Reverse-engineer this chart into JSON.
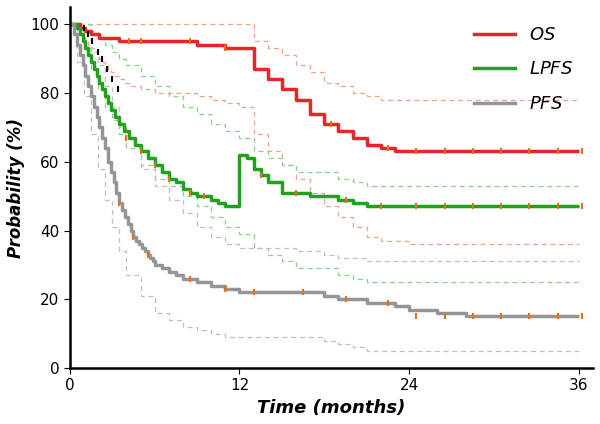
{
  "xlabel": "Time (months)",
  "ylabel": "Probability (%)",
  "xlim": [
    0,
    37
  ],
  "ylim": [
    0,
    105
  ],
  "xticks": [
    0,
    12,
    24,
    36
  ],
  "yticks": [
    0,
    20,
    40,
    60,
    80,
    100
  ],
  "OS_color": "#e8262a",
  "LPFS_color": "#22a11e",
  "PFS_color": "#959595",
  "CI_OS_color": "#f4a08a",
  "CI_LPFS_color": "#88d488",
  "CI_PFS_color": "#c0c0c0",
  "OS_x": [
    0,
    0.3,
    0.5,
    0.7,
    0.9,
    1.1,
    1.3,
    1.5,
    1.7,
    1.9,
    2.1,
    2.3,
    2.5,
    2.7,
    2.9,
    3.2,
    3.5,
    3.8,
    4.2,
    4.6,
    5.0,
    5.5,
    6.0,
    6.5,
    7.0,
    7.5,
    8.0,
    9.0,
    10.0,
    11.0,
    12.0,
    13.0,
    14.0,
    15.0,
    16.0,
    17.0,
    18.0,
    19.0,
    20.0,
    21.0,
    22.0,
    23.0,
    24.0,
    26.0,
    28.0,
    30.0,
    32.0,
    34.0,
    36.0
  ],
  "OS_y": [
    100,
    100,
    100,
    99,
    99,
    98,
    98,
    97,
    97,
    97,
    96,
    96,
    96,
    96,
    96,
    96,
    95,
    95,
    95,
    95,
    95,
    95,
    95,
    95,
    95,
    95,
    95,
    94,
    94,
    93,
    93,
    87,
    84,
    81,
    78,
    74,
    71,
    69,
    67,
    65,
    64,
    63,
    63,
    63,
    63,
    63,
    63,
    63,
    63
  ],
  "LPFS_x": [
    0,
    0.3,
    0.5,
    0.7,
    0.9,
    1.1,
    1.3,
    1.5,
    1.7,
    1.9,
    2.1,
    2.3,
    2.5,
    2.7,
    2.9,
    3.2,
    3.5,
    3.8,
    4.2,
    4.6,
    5.0,
    5.5,
    6.0,
    6.5,
    7.0,
    7.5,
    8.0,
    8.5,
    9.0,
    9.5,
    10.0,
    10.5,
    11.0,
    11.5,
    12.0,
    12.5,
    13.0,
    13.5,
    14.0,
    15.0,
    16.0,
    17.0,
    18.0,
    19.0,
    20.0,
    21.0,
    22.0,
    23.0,
    24.0,
    26.0,
    28.0,
    30.0,
    32.0,
    34.0,
    36.0
  ],
  "LPFS_y": [
    100,
    100,
    99,
    97,
    95,
    93,
    91,
    89,
    87,
    85,
    83,
    81,
    79,
    77,
    75,
    73,
    71,
    69,
    67,
    65,
    63,
    61,
    59,
    57,
    55,
    54,
    52,
    51,
    50,
    50,
    49,
    48,
    47,
    47,
    62,
    61,
    58,
    56,
    54,
    51,
    51,
    50,
    50,
    49,
    48,
    47,
    47,
    47,
    47,
    47,
    47,
    47,
    47,
    47,
    47
  ],
  "PFS_x": [
    0,
    0.3,
    0.5,
    0.7,
    0.9,
    1.1,
    1.3,
    1.5,
    1.7,
    1.9,
    2.1,
    2.3,
    2.5,
    2.7,
    2.9,
    3.1,
    3.3,
    3.5,
    3.7,
    3.9,
    4.1,
    4.3,
    4.5,
    4.7,
    4.9,
    5.1,
    5.3,
    5.5,
    5.7,
    5.9,
    6.0,
    6.5,
    7.0,
    7.5,
    8.0,
    8.5,
    9.0,
    9.5,
    10.0,
    10.5,
    11.0,
    11.5,
    12.0,
    12.5,
    13.0,
    13.5,
    14.0,
    15.0,
    16.0,
    17.0,
    18.0,
    19.0,
    20.0,
    21.0,
    22.0,
    23.0,
    24.0,
    26.0,
    28.0,
    30.0,
    32.0,
    34.0,
    36.0
  ],
  "PFS_y": [
    100,
    97,
    94,
    91,
    88,
    85,
    82,
    79,
    76,
    73,
    70,
    67,
    64,
    60,
    57,
    54,
    51,
    48,
    46,
    44,
    42,
    40,
    38,
    37,
    36,
    35,
    34,
    33,
    32,
    31,
    30,
    29,
    28,
    27,
    26,
    26,
    25,
    25,
    24,
    24,
    23,
    23,
    22,
    22,
    22,
    22,
    22,
    22,
    22,
    22,
    21,
    20,
    20,
    19,
    19,
    18,
    17,
    16,
    15,
    15,
    15,
    15,
    15
  ],
  "OS_ci_upper_x": [
    0,
    0.3,
    0.5,
    0.7,
    0.9,
    1.1,
    1.3,
    1.5,
    1.7,
    1.9,
    2.1,
    2.3,
    2.5,
    2.7,
    2.9,
    3.2,
    3.5,
    3.8,
    4.2,
    5.0,
    6.0,
    7.0,
    8.0,
    9.0,
    10.0,
    11.0,
    12.0,
    13.0,
    14.0,
    15.0,
    16.0,
    17.0,
    18.0,
    19.0,
    20.0,
    21.0,
    22.0,
    24.0,
    26.0,
    28.0,
    30.0,
    32.0,
    34.0,
    36.0
  ],
  "OS_ci_upper_y": [
    100,
    100,
    100,
    100,
    100,
    100,
    100,
    100,
    100,
    100,
    100,
    100,
    100,
    100,
    100,
    100,
    100,
    100,
    100,
    100,
    100,
    100,
    100,
    100,
    100,
    100,
    100,
    95,
    93,
    91,
    88,
    86,
    83,
    82,
    80,
    79,
    78,
    78,
    78,
    78,
    78,
    78,
    78,
    78
  ],
  "OS_ci_lower_x": [
    0,
    0.3,
    0.5,
    0.7,
    0.9,
    1.1,
    1.3,
    1.5,
    1.7,
    1.9,
    2.1,
    2.3,
    2.5,
    2.7,
    2.9,
    3.2,
    3.5,
    3.8,
    4.2,
    5.0,
    6.0,
    7.0,
    8.0,
    9.0,
    10.0,
    11.0,
    12.0,
    13.0,
    14.0,
    15.0,
    16.0,
    17.0,
    18.0,
    19.0,
    20.0,
    21.0,
    22.0,
    24.0,
    26.0,
    28.0,
    30.0,
    32.0,
    34.0,
    36.0
  ],
  "OS_ci_lower_y": [
    100,
    100,
    99,
    97,
    96,
    95,
    94,
    93,
    92,
    91,
    90,
    89,
    88,
    87,
    86,
    85,
    84,
    83,
    82,
    81,
    80,
    80,
    80,
    79,
    78,
    77,
    76,
    68,
    63,
    59,
    55,
    51,
    47,
    44,
    41,
    38,
    37,
    36,
    36,
    36,
    36,
    36,
    36,
    36
  ],
  "LPFS_ci_upper_x": [
    0,
    0.5,
    1.0,
    1.5,
    2.0,
    2.5,
    3.0,
    3.5,
    4.0,
    5.0,
    6.0,
    7.0,
    8.0,
    9.0,
    10.0,
    11.0,
    12.0,
    13.0,
    14.0,
    15.0,
    16.0,
    17.0,
    18.0,
    19.0,
    20.0,
    21.0,
    22.0,
    24.0,
    26.0,
    28.0,
    30.0,
    32.0,
    34.0,
    36.0
  ],
  "LPFS_ci_upper_y": [
    100,
    100,
    100,
    98,
    96,
    94,
    92,
    90,
    88,
    85,
    82,
    79,
    76,
    74,
    71,
    69,
    67,
    63,
    61,
    59,
    57,
    57,
    57,
    55,
    54,
    53,
    53,
    53,
    53,
    53,
    53,
    53,
    53,
    53
  ],
  "LPFS_ci_lower_x": [
    0,
    0.5,
    1.0,
    1.5,
    2.0,
    2.5,
    3.0,
    3.5,
    4.0,
    5.0,
    6.0,
    7.0,
    8.0,
    9.0,
    10.0,
    11.0,
    12.0,
    13.0,
    14.0,
    15.0,
    16.0,
    17.0,
    18.0,
    19.0,
    20.0,
    21.0,
    22.0,
    24.0,
    26.0,
    28.0,
    30.0,
    32.0,
    34.0,
    36.0
  ],
  "LPFS_ci_lower_y": [
    100,
    97,
    93,
    87,
    81,
    76,
    72,
    68,
    64,
    59,
    55,
    53,
    50,
    47,
    44,
    41,
    39,
    35,
    33,
    31,
    29,
    29,
    29,
    27,
    26,
    25,
    25,
    25,
    25,
    25,
    25,
    25,
    25,
    25
  ],
  "PFS_ci_upper_x": [
    0,
    0.5,
    1.0,
    1.5,
    2.0,
    2.5,
    3.0,
    3.5,
    4.0,
    5.0,
    6.0,
    7.0,
    8.0,
    9.0,
    10.0,
    11.0,
    12.0,
    13.0,
    14.0,
    15.0,
    16.0,
    17.0,
    18.0,
    19.0,
    20.0,
    21.0,
    22.0,
    24.0,
    26.0,
    28.0,
    30.0,
    32.0,
    34.0,
    36.0
  ],
  "PFS_ci_upper_y": [
    100,
    100,
    98,
    93,
    88,
    82,
    76,
    70,
    64,
    58,
    53,
    49,
    45,
    41,
    38,
    36,
    35,
    35,
    35,
    35,
    34,
    34,
    33,
    32,
    32,
    31,
    31,
    31,
    31,
    31,
    31,
    31,
    31,
    31
  ],
  "PFS_ci_lower_x": [
    0,
    0.5,
    1.0,
    1.5,
    2.0,
    2.5,
    3.0,
    3.5,
    4.0,
    5.0,
    6.0,
    7.0,
    8.0,
    9.0,
    10.0,
    11.0,
    12.0,
    13.0,
    14.0,
    15.0,
    16.0,
    17.0,
    18.0,
    19.0,
    20.0,
    21.0,
    22.0,
    24.0,
    26.0,
    28.0,
    30.0,
    32.0,
    34.0,
    36.0
  ],
  "PFS_ci_lower_y": [
    100,
    89,
    79,
    68,
    58,
    49,
    41,
    34,
    27,
    21,
    16,
    14,
    12,
    11,
    10,
    9,
    9,
    9,
    9,
    9,
    9,
    9,
    8,
    7,
    6,
    5,
    5,
    5,
    5,
    5,
    5,
    5,
    5,
    5
  ],
  "censor_OS_x": [
    4.2,
    5.0,
    8.5,
    11.0,
    18.5,
    22.5,
    24.5,
    26.5,
    28.5,
    30.5,
    32.5,
    34.5,
    36.2
  ],
  "censor_OS_y": [
    95,
    95,
    95,
    93,
    71,
    64,
    63,
    63,
    63,
    63,
    63,
    63,
    63
  ],
  "censor_LPFS_x": [
    4.0,
    5.0,
    6.0,
    7.0,
    8.5,
    9.5,
    13.5,
    16.0,
    19.5,
    22.0,
    24.5,
    26.5,
    28.5,
    30.5,
    32.5,
    34.5,
    36.2
  ],
  "censor_LPFS_y": [
    67,
    63,
    59,
    55,
    51,
    50,
    56,
    51,
    49,
    47,
    47,
    47,
    47,
    47,
    47,
    47,
    47
  ],
  "censor_PFS_x": [
    3.5,
    4.5,
    5.5,
    8.5,
    11.0,
    13.0,
    16.5,
    19.5,
    22.5,
    24.5,
    26.5,
    28.5,
    30.5,
    32.5,
    34.5,
    36.2
  ],
  "censor_PFS_y": [
    48,
    38,
    33,
    26,
    23,
    22,
    22,
    20,
    19,
    15,
    15,
    15,
    15,
    15,
    15,
    15
  ],
  "censor_black_x": [
    1.0,
    1.3,
    1.6,
    2.0,
    2.3,
    2.6,
    3.0,
    3.4
  ],
  "censor_black_y": [
    99,
    97,
    95,
    92,
    90,
    87,
    84,
    81
  ]
}
